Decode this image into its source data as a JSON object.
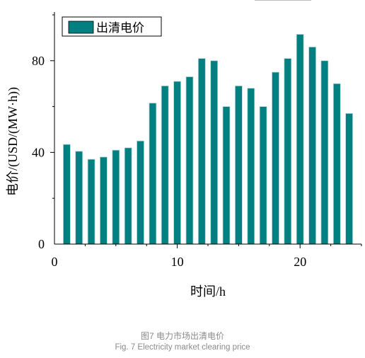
{
  "chart_data": {
    "type": "bar",
    "x": [
      1,
      2,
      3,
      4,
      5,
      6,
      7,
      8,
      9,
      10,
      11,
      12,
      13,
      14,
      15,
      16,
      17,
      18,
      19,
      20,
      21,
      22,
      23,
      24
    ],
    "series": [
      {
        "name": "出清电价",
        "values": [
          43.5,
          40.5,
          37,
          38,
          41,
          42,
          45,
          61.5,
          69,
          71,
          73,
          81,
          80,
          60,
          69,
          68,
          60,
          75,
          81,
          91.5,
          86,
          80,
          70,
          57
        ]
      }
    ],
    "xlabel": "时间/h",
    "ylabel": "电价/(USD/(MW·h))",
    "xlim": [
      0,
      25
    ],
    "ylim": [
      0,
      100
    ],
    "xticks": [
      0,
      10,
      20
    ],
    "yticks": [
      0,
      40,
      80
    ],
    "legend_position": "top-left",
    "grid": false,
    "bar_color": "#008080"
  },
  "caption": {
    "zh": "图7 电力市场出清电价",
    "en": "Fig. 7 Electricity market clearing price"
  }
}
